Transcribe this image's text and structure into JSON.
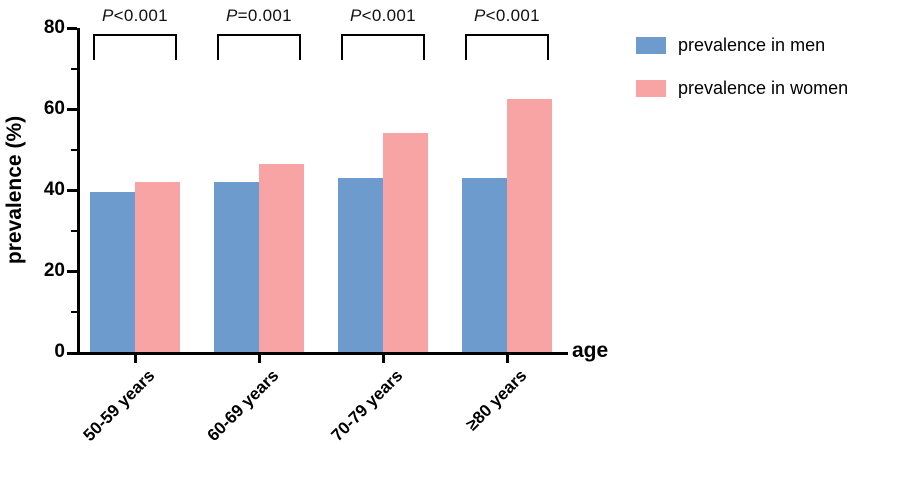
{
  "chart_data": {
    "type": "bar",
    "categories": [
      "50-59 years",
      "60-69 years",
      "70-79 years",
      "≥80 years"
    ],
    "series": [
      {
        "name": "prevalence in men",
        "color": "#6d9bce",
        "values": [
          39.5,
          42.0,
          43.0,
          43.0
        ]
      },
      {
        "name": "prevalence in women",
        "color": "#f8a3a4",
        "values": [
          42.0,
          46.5,
          54.0,
          62.5
        ]
      }
    ],
    "p_values": [
      "P<0.001",
      "P=0.001",
      "P<0.001",
      "P<0.001"
    ],
    "title": "",
    "xlabel": "age",
    "ylabel": "prevalence (%)",
    "ylim": [
      0,
      80
    ],
    "yticks_major": [
      0,
      20,
      40,
      60,
      80
    ],
    "yticks_minor": [
      10,
      30,
      50,
      70
    ],
    "grid": false,
    "legend_position": "top-right",
    "axis_color": "#000000"
  }
}
